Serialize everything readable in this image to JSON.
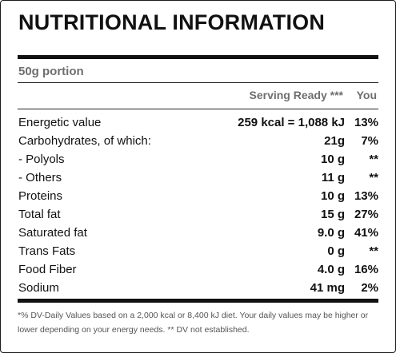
{
  "label": {
    "title": "NUTRITIONAL INFORMATION",
    "portion": "50g portion",
    "columns": {
      "serving": "Serving Ready ***",
      "dv": "You"
    },
    "rows": [
      {
        "name": "Energetic value",
        "amount": "259 kcal = 1,088 kJ",
        "dv": "13%"
      },
      {
        "name": "Carbohydrates, of which:",
        "amount": "21g",
        "dv": "7%"
      },
      {
        "name": "- Polyols",
        "amount": "10 g",
        "dv": "**"
      },
      {
        "name": "- Others",
        "amount": "11 g",
        "dv": "**"
      },
      {
        "name": "Proteins",
        "amount": "10 g",
        "dv": "13%"
      },
      {
        "name": "Total fat",
        "amount": "15 g",
        "dv": "27%"
      },
      {
        "name": "Saturated fat",
        "amount": "9.0 g",
        "dv": "41%"
      },
      {
        "name": "Trans Fats",
        "amount": "0 g",
        "dv": "**"
      },
      {
        "name": "Food Fiber",
        "amount": "4.0 g",
        "dv": "16%"
      },
      {
        "name": "Sodium",
        "amount": "41 mg",
        "dv": "2%"
      }
    ],
    "footnote": "*% DV-Daily Values based on a 2,000 kcal or 8,400 kJ diet. Your daily values may be higher or lower depending on your energy needs. ** DV not established."
  }
}
